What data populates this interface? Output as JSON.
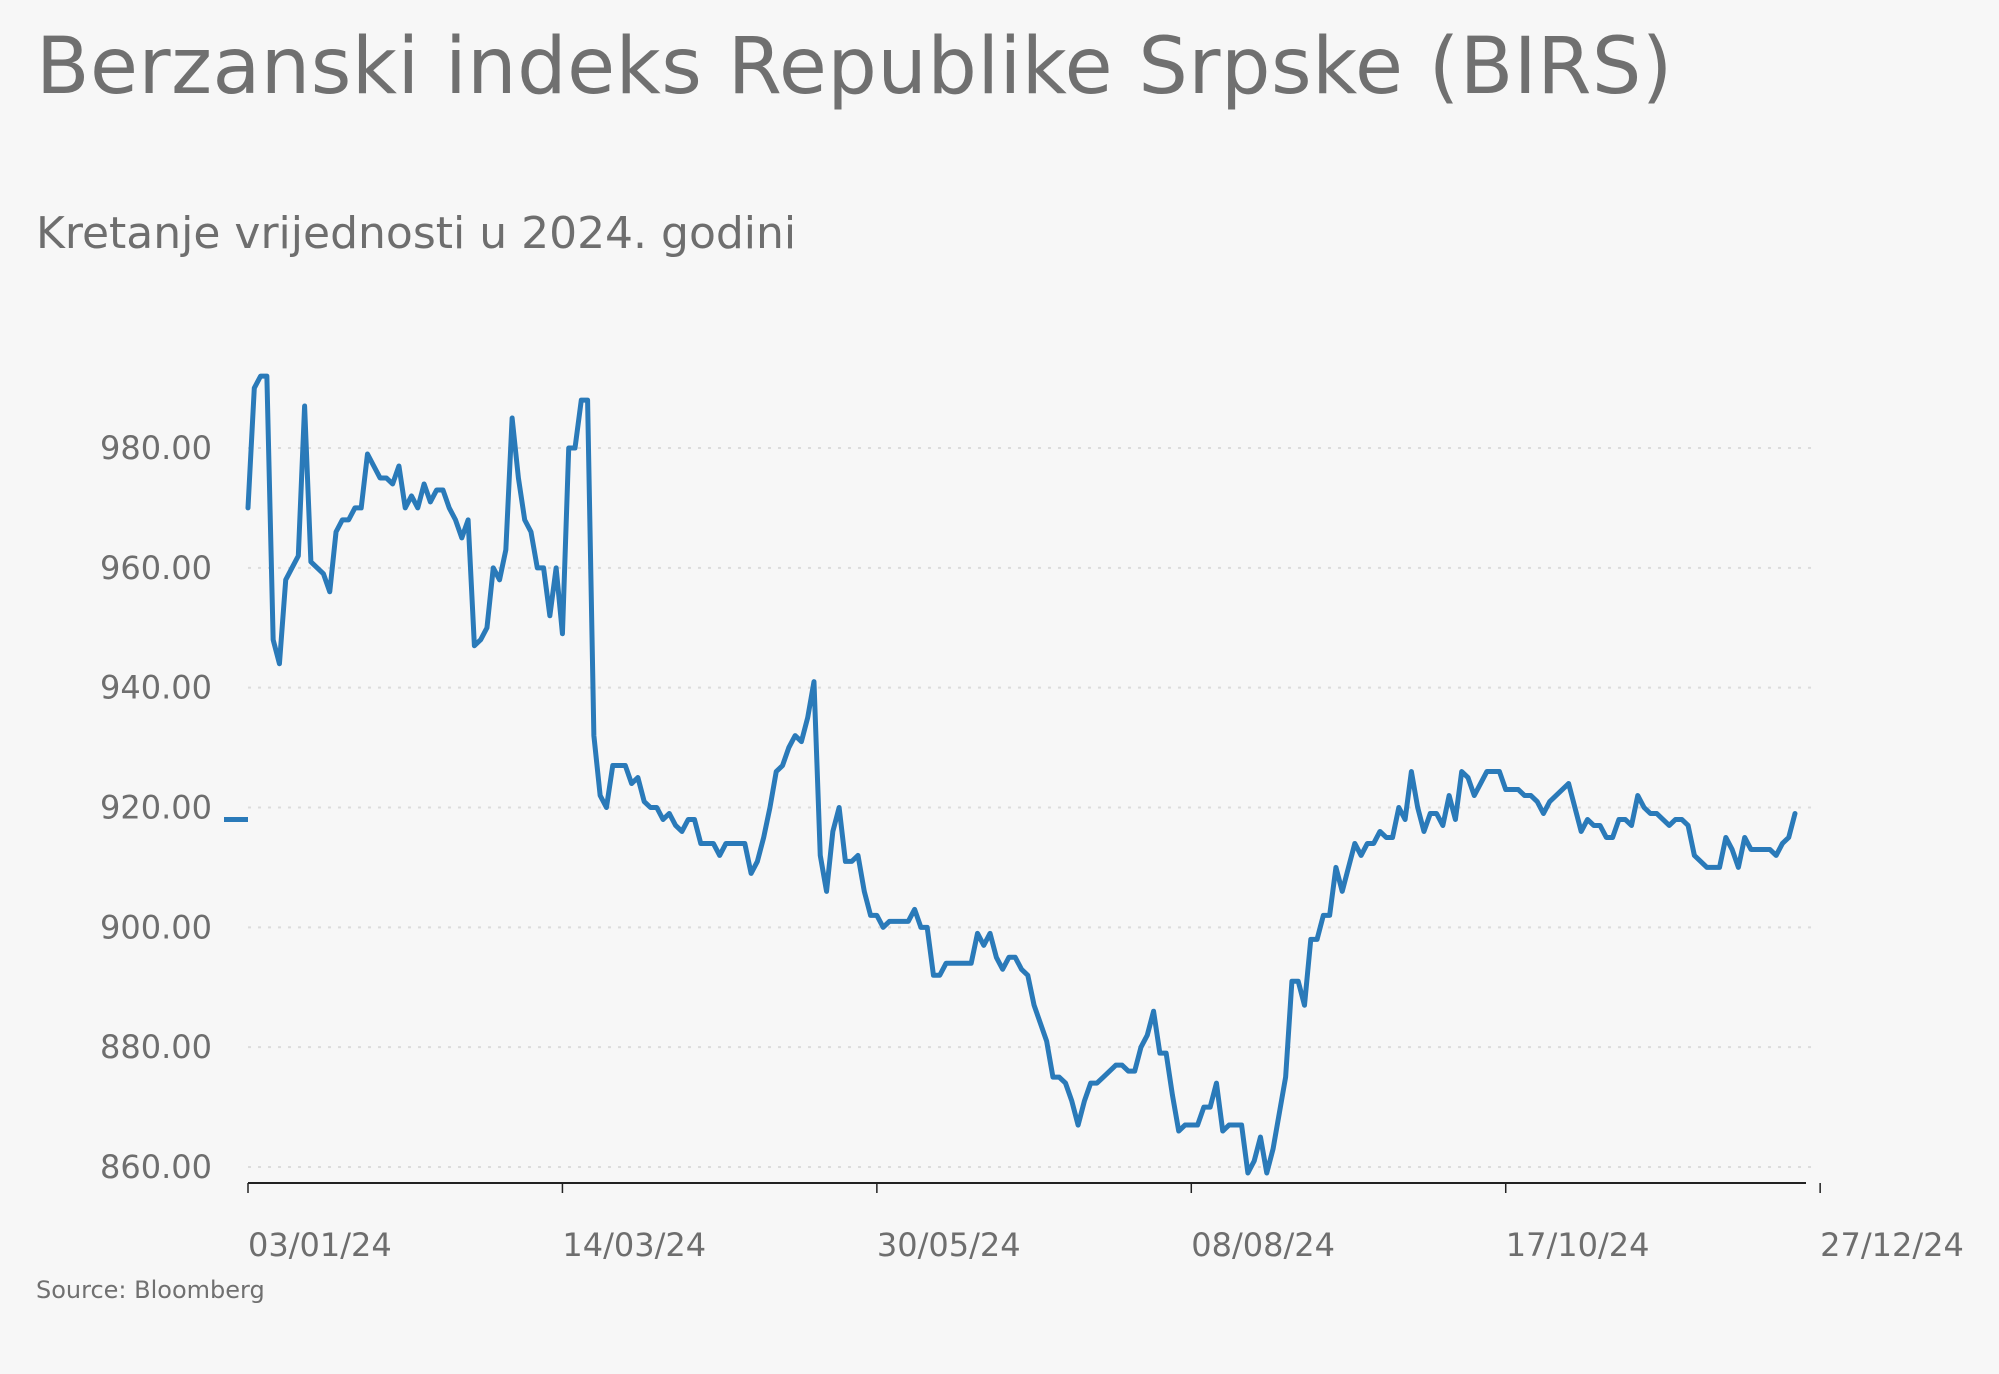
{
  "chart_data": {
    "type": "line",
    "title": "Berzanski indeks Republike Srpske (BIRS)",
    "subtitle": "Kretanje vrijednosti u 2024. godini",
    "source": "Source: Bloomberg",
    "xlabel": "",
    "ylabel": "",
    "ylim": [
      858,
      994
    ],
    "y_ticks": [
      860,
      880,
      900,
      920,
      940,
      960,
      980
    ],
    "y_tick_labels": [
      "860.00",
      "880.00",
      "900.00",
      "920.00",
      "940.00",
      "960.00",
      "980.00"
    ],
    "x_ticks": [
      0,
      50,
      100,
      150,
      200,
      250
    ],
    "x_tick_labels": [
      "03/01/24",
      "14/03/24",
      "30/05/24",
      "08/08/24",
      "17/10/24",
      "27/12/24"
    ],
    "legend_entry": {
      "value": 918
    },
    "grid": true,
    "line_color": "#2a7ab9",
    "series": [
      {
        "color": "#2a7ab9",
        "values": [
          970,
          990,
          992,
          992,
          948,
          944,
          958,
          960,
          962,
          987,
          961,
          960,
          959,
          956,
          966,
          968,
          968,
          970,
          970,
          979,
          977,
          975,
          975,
          974,
          977,
          970,
          972,
          970,
          974,
          971,
          973,
          973,
          970,
          968,
          965,
          968,
          947,
          948,
          950,
          960,
          958,
          963,
          985,
          975,
          968,
          966,
          960,
          960,
          952,
          960,
          949,
          980,
          980,
          988,
          988,
          932,
          922,
          920,
          927,
          927,
          927,
          924,
          925,
          921,
          920,
          920,
          918,
          919,
          917,
          916,
          918,
          918,
          914,
          914,
          914,
          912,
          914,
          914,
          914,
          914,
          909,
          911,
          915,
          920,
          926,
          927,
          930,
          932,
          931,
          935,
          941,
          912,
          906,
          916,
          920,
          911,
          911,
          912,
          906,
          902,
          902,
          900,
          901,
          901,
          901,
          901,
          903,
          900,
          900,
          892,
          892,
          894,
          894,
          894,
          894,
          894,
          899,
          897,
          899,
          895,
          893,
          895,
          895,
          893,
          892,
          887,
          884,
          881,
          875,
          875,
          874,
          871,
          867,
          871,
          874,
          874,
          875,
          876,
          877,
          877,
          876,
          876,
          880,
          882,
          886,
          879,
          879,
          872,
          866,
          867,
          867,
          867,
          870,
          870,
          874,
          866,
          867,
          867,
          867,
          859,
          861,
          865,
          859,
          863,
          869,
          875,
          891,
          891,
          887,
          898,
          898,
          902,
          902,
          910,
          906,
          910,
          914,
          912,
          914,
          914,
          916,
          915,
          915,
          920,
          918,
          926,
          920,
          916,
          919,
          919,
          917,
          922,
          918,
          926,
          925,
          922,
          924,
          926,
          926,
          926,
          923,
          923,
          923,
          922,
          922,
          921,
          919,
          921,
          922,
          923,
          924,
          920,
          916,
          918,
          917,
          917,
          915,
          915,
          918,
          918,
          917,
          922,
          920,
          919,
          919,
          918,
          917,
          918,
          918,
          917,
          912,
          911,
          910,
          910,
          910,
          915,
          913,
          910,
          915,
          913,
          913,
          913,
          913,
          912,
          914,
          915,
          919
        ]
      }
    ]
  }
}
